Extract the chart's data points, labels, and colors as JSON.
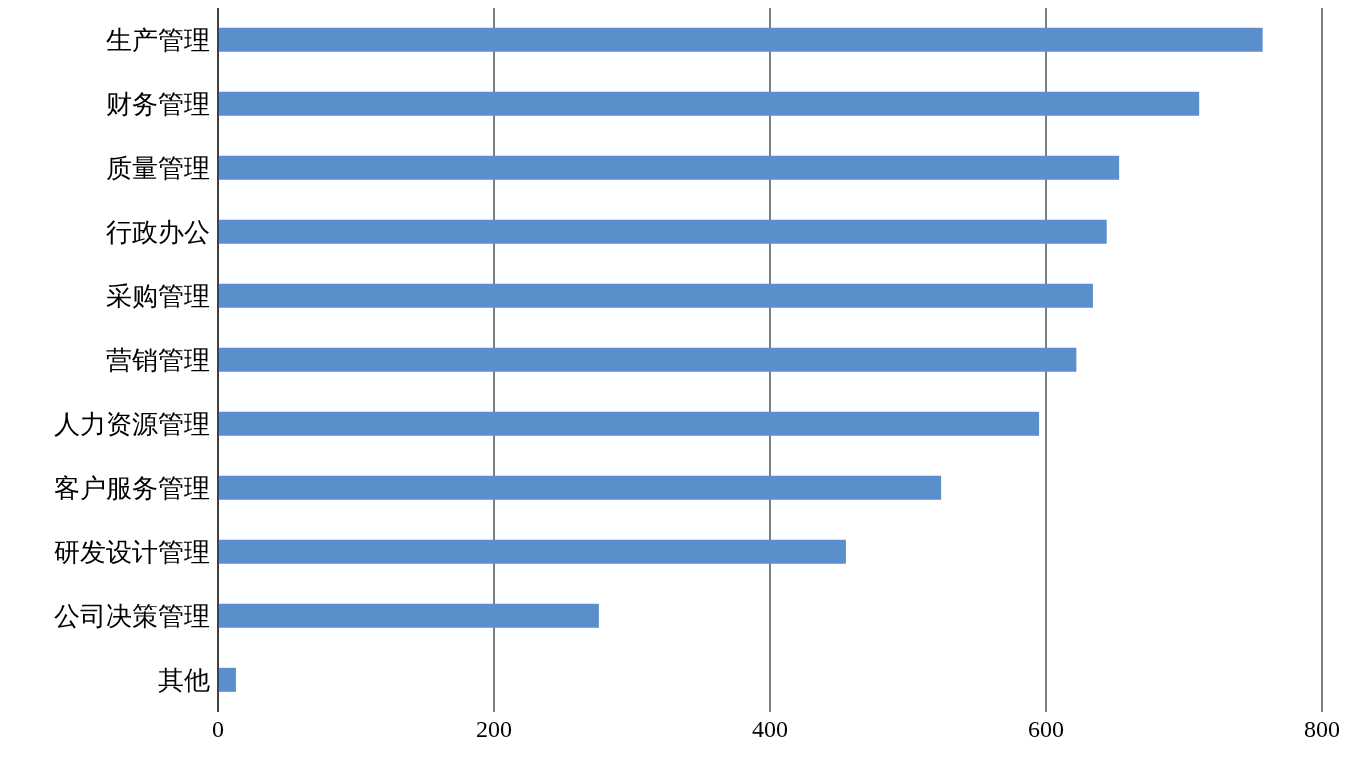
{
  "chart_data": {
    "type": "bar",
    "orientation": "horizontal",
    "categories": [
      "生产管理",
      "财务管理",
      "质量管理",
      "行政办公",
      "采购管理",
      "营销管理",
      "人力资源管理",
      "客户服务管理",
      "研发设计管理",
      "公司决策管理",
      "其他"
    ],
    "values": [
      757,
      711,
      653,
      644,
      634,
      622,
      595,
      524,
      455,
      276,
      13
    ],
    "color": "#5b8fcb",
    "xlim": [
      0,
      800
    ],
    "xticks": [
      0,
      200,
      400,
      600,
      800
    ],
    "grid": "x"
  }
}
